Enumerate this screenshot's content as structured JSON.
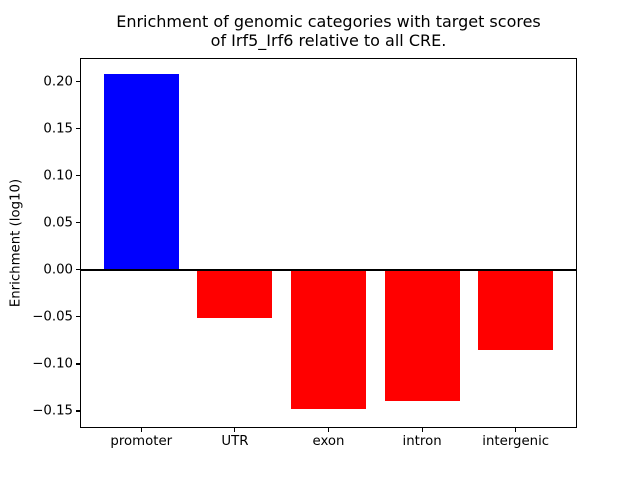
{
  "chart_data": {
    "type": "bar",
    "title": "Enrichment of genomic categories with target scores\nof Irf5_Irf6 relative to all CRE.",
    "xlabel": "",
    "ylabel": "Enrichment (log10)",
    "categories": [
      "promoter",
      "UTR",
      "exon",
      "intron",
      "intergenic"
    ],
    "values": [
      0.208,
      -0.051,
      -0.148,
      -0.139,
      -0.085
    ],
    "bar_colors": [
      "#0000ff",
      "#ff0000",
      "#ff0000",
      "#ff0000",
      "#ff0000"
    ],
    "positive_color": "#0000ff",
    "negative_color": "#ff0000",
    "axis_color": "#000000",
    "background_color": "#ffffff",
    "ylim": [
      -0.167,
      0.224
    ],
    "yticks": [
      0.2,
      0.15,
      0.1,
      0.05,
      0.0,
      -0.05,
      -0.1,
      -0.15
    ],
    "ytick_labels": [
      "0.20",
      "0.15",
      "0.10",
      "0.05",
      "0.00",
      "−0.05",
      "−0.10",
      "−0.15"
    ],
    "xlim": [
      -0.644,
      4.644
    ],
    "bar_width": 0.8,
    "zero_line": true,
    "grid": false,
    "legend": null
  }
}
